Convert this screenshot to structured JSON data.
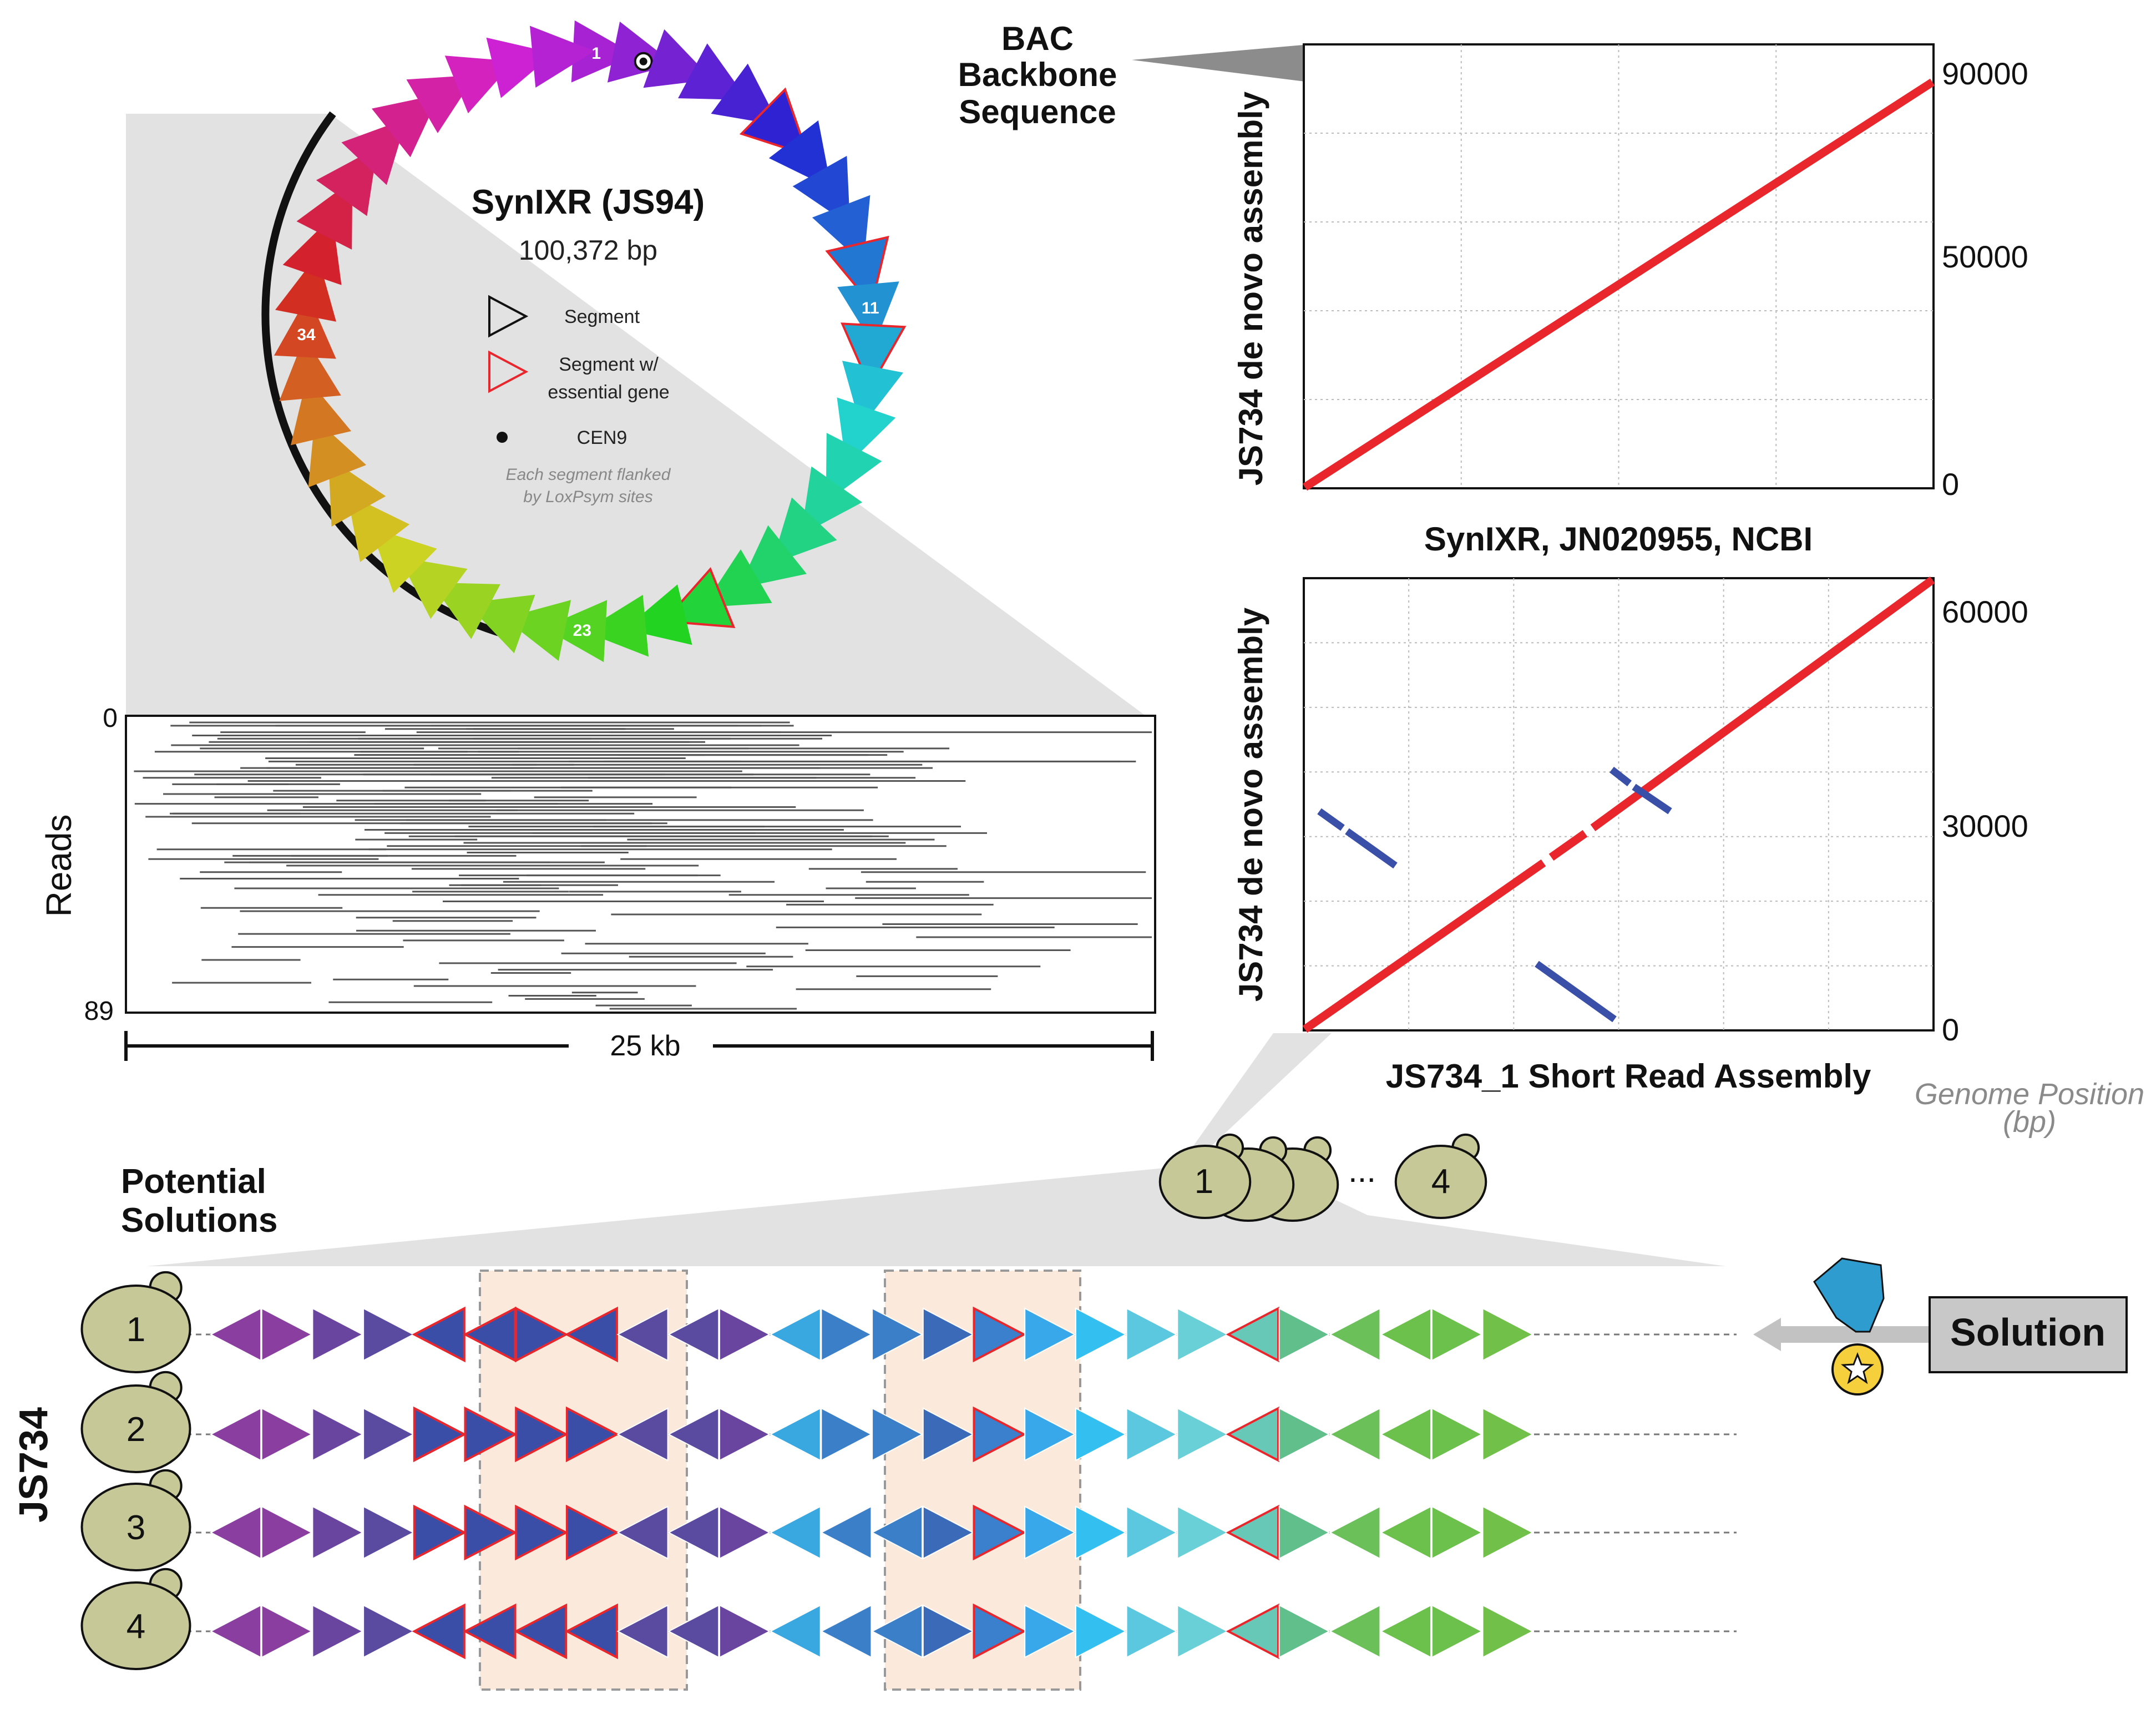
{
  "plasmid": {
    "title": "SynIXR (JS94)",
    "size": "100,372 bp",
    "segment_count": 44,
    "numbered_labels": [
      {
        "segment": 1,
        "text": "1"
      },
      {
        "segment": 11,
        "text": "11"
      },
      {
        "segment": 23,
        "text": "23"
      },
      {
        "segment": 34,
        "text": "34"
      }
    ],
    "essential_segments": [
      6,
      10,
      12,
      20
    ],
    "reversed_segments": [],
    "cen9_segment": 2,
    "legend": {
      "segment": "Segment",
      "essential_line1": "Segment w/",
      "essential_line2": "essential gene",
      "cen9": "CEN9",
      "note_line1": "Each segment flanked",
      "note_line2": "by LoxPsym sites"
    }
  },
  "reads_panel": {
    "ylabel": "Reads",
    "y_top": "0",
    "y_bottom": "89",
    "scale_label": "25 kb",
    "read_count": 89
  },
  "bac_label": {
    "line1": "BAC",
    "line2": "Backbone",
    "line3": "Sequence"
  },
  "dotplot_top": {
    "xlabel": "SynIXR, JN020955, NCBI",
    "ylabel": "JS734 de novo assembly",
    "y_ticks": [
      "90000",
      "50000",
      "0"
    ],
    "ylim": [
      0,
      90000
    ]
  },
  "dotplot_bottom": {
    "xlabel": "JS734_1 Short Read Assembly",
    "ylabel": "JS734 de novo assembly",
    "y_ticks": [
      "60000",
      "30000",
      "0"
    ],
    "ylim": [
      0,
      60000
    ]
  },
  "genome_position_label": {
    "line1": "Genome Position",
    "line2": "(bp)"
  },
  "yeast_cluster": {
    "first": "1",
    "ellipsis": "...",
    "last": "4"
  },
  "solutions": {
    "title_line1": "Potential",
    "title_line2": "Solutions",
    "strain": "JS734",
    "solution_label": "Solution",
    "rows": [
      {
        "label": "1",
        "dirs": "LRRRLLRLLLRLRRRRRRRRLRLLRR"
      },
      {
        "label": "2",
        "dirs": "LRRRRRRRLLRLRRRRRRRRLRLLRR"
      },
      {
        "label": "3",
        "dirs": "LRRRRRRRLLRLLLRRRRRRLRLLRR"
      },
      {
        "label": "4",
        "dirs": "LRRRLLLLLLRLLLRRRRRRLRLLRR"
      }
    ],
    "colors": [
      "#8a3fa0",
      "#8a3fa0",
      "#6a45a0",
      "#5a4aa0",
      "#3a4ea8",
      "#3a4ea8",
      "#3a4ea8",
      "#3a4ea8",
      "#5a4aa0",
      "#5a4aa0",
      "#6a45a0",
      "#3aa8e0",
      "#3a7fc8",
      "#3a7fc8",
      "#3a6ab8",
      "#3a80cc",
      "#38a8ea",
      "#33c0f0",
      "#5cc8e0",
      "#6ad0d8",
      "#68c8b8",
      "#60bf8a",
      "#6cc05a",
      "#6cc04c",
      "#6cc04c",
      "#70c04a"
    ],
    "essential_cols": [
      4,
      5,
      6,
      7,
      15,
      20
    ]
  },
  "colors": {
    "dot_red": "#e8262c",
    "dot_blue": "#3a4fa8",
    "yeast": "#c7c898",
    "highlight_box": "#fbeadb",
    "solution_box": "#c8c8c8",
    "medal_blue": "#2f9ccf",
    "medal_gold": "#f6cf3c"
  }
}
